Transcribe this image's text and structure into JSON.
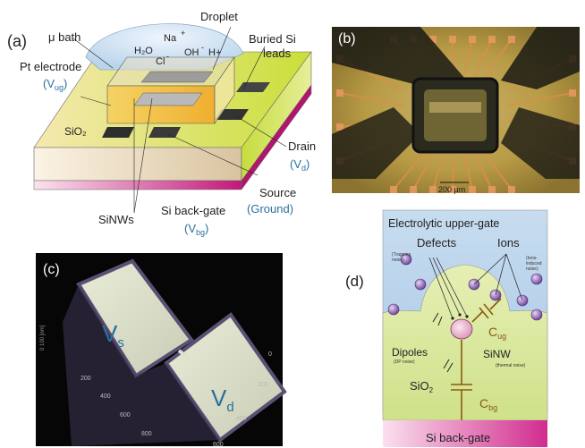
{
  "panel_a": {
    "tag": "(a)",
    "mu_bath": "μ bath",
    "droplet": "Droplet",
    "na": "Na",
    "plus1": "+",
    "h2o": "H₂O",
    "oh": "OH",
    "minus1": "-",
    "hplus": "H+",
    "cl": "Cl",
    "minus2": "-",
    "buried_si": "Buried Si",
    "leads": "leads",
    "pt_electrode": "Pt electrode",
    "v_ug_main": "(V",
    "v_ug_sub": "ug",
    "v_ug_close": ")",
    "sio2": "SiO₂",
    "drain": "Drain",
    "v_d_main": "(V",
    "v_d_sub": "d",
    "v_d_close": ")",
    "source": "Source",
    "ground": "(Ground)",
    "si_back_gate": "Si back-gate",
    "v_bg_main": "(V",
    "v_bg_sub": "bg",
    "v_bg_close": ")",
    "sinws": "SiNWs"
  },
  "panel_b": {
    "tag": "(b)",
    "scale": "200 μm"
  },
  "panel_c": {
    "tag": "(c)",
    "vs_main": "V",
    "vs_sub": "s",
    "vd_main": "V",
    "vd_sub": "d",
    "z_label": "0     100 [nm]",
    "ticks_left": [
      "200",
      "400",
      "600",
      "800"
    ],
    "ticks_right": [
      "0",
      "200",
      "400",
      "600"
    ]
  },
  "panel_d": {
    "tag": "(d)",
    "electrolytic": "Electrolytic upper-gate",
    "defects": "Defects",
    "trapping": "(Trapping",
    "trapping2": "noise)",
    "ions": "Ions",
    "ions_n1": "(Ions-",
    "ions_n2": "induced",
    "ions_n3": "noise)",
    "c_ug_main": "C",
    "c_ug_sub": "ug",
    "dipoles": "Dipoles",
    "dp_noise": "(DP noise)",
    "sinw": "SiNW",
    "thermal": "(thermal noise)",
    "sio2_main": "SiO",
    "sio2_sub": "2",
    "c_bg_main": "C",
    "c_bg_sub": "bg",
    "si_back_gate": "Si back-gate"
  },
  "colors": {
    "label_blue": "#2a6f9e",
    "capacitor_brown": "#8a5a12",
    "gate_magenta": "#c2187a",
    "electrolyte_blue": "#b8d3ea",
    "oxide_green": "#d8e89a"
  }
}
